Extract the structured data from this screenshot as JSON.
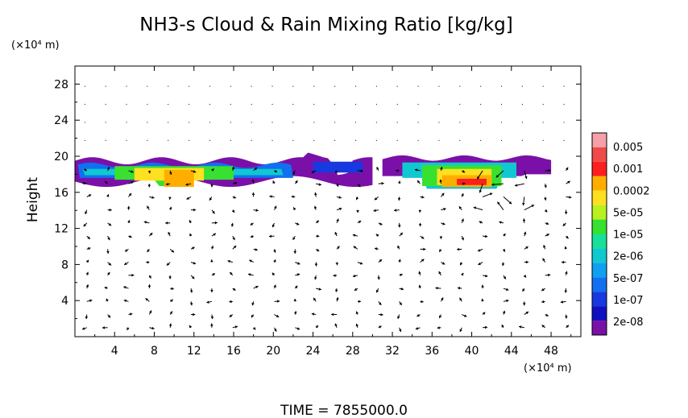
{
  "chart_data": {
    "type": "heatmap",
    "title": "NH3-s Cloud & Rain Mixing Ratio [kg/kg]",
    "ylabel": "Height",
    "y_unit": "(×10⁴ m)",
    "x_unit": "(×10⁴ m)",
    "footer": "TIME = 7855000.0",
    "xlim": [
      0,
      51
    ],
    "ylim": [
      0,
      30
    ],
    "x_ticks": [
      4,
      8,
      12,
      16,
      20,
      24,
      28,
      32,
      36,
      40,
      44,
      48
    ],
    "y_ticks": [
      4,
      8,
      12,
      16,
      20,
      24,
      28
    ],
    "x_tick_labels": [
      "4",
      "8",
      "12",
      "16",
      "20",
      "24",
      "28",
      "32",
      "36",
      "40",
      "44",
      "48"
    ],
    "y_tick_labels": [
      "4",
      "8",
      "12",
      "16",
      "20",
      "24",
      "28"
    ],
    "colorbar": {
      "labels": [
        "0.005",
        "0.001",
        "0.0002",
        "5e-05",
        "1e-05",
        "2e-06",
        "5e-07",
        "1e-07",
        "2e-08"
      ],
      "colors": [
        "#f4a0a8",
        "#ee4a4a",
        "#ff1e1e",
        "#ffae00",
        "#ffe020",
        "#b8f020",
        "#38e030",
        "#18e098",
        "#10c8d0",
        "#10a0f0",
        "#1070f0",
        "#1838e0",
        "#1010c0",
        "#7a10a8"
      ]
    },
    "cloud_regions": [
      {
        "name": "left",
        "x_range": [
          0,
          30
        ],
        "height_range": [
          16,
          20
        ],
        "peak_level": "0.0002"
      },
      {
        "name": "right",
        "x_range": [
          33,
          48
        ],
        "height_range": [
          16,
          20
        ],
        "peak_level": "0.001"
      }
    ],
    "vectors": "wind field arrows (height 0–20, x 0–51)"
  }
}
